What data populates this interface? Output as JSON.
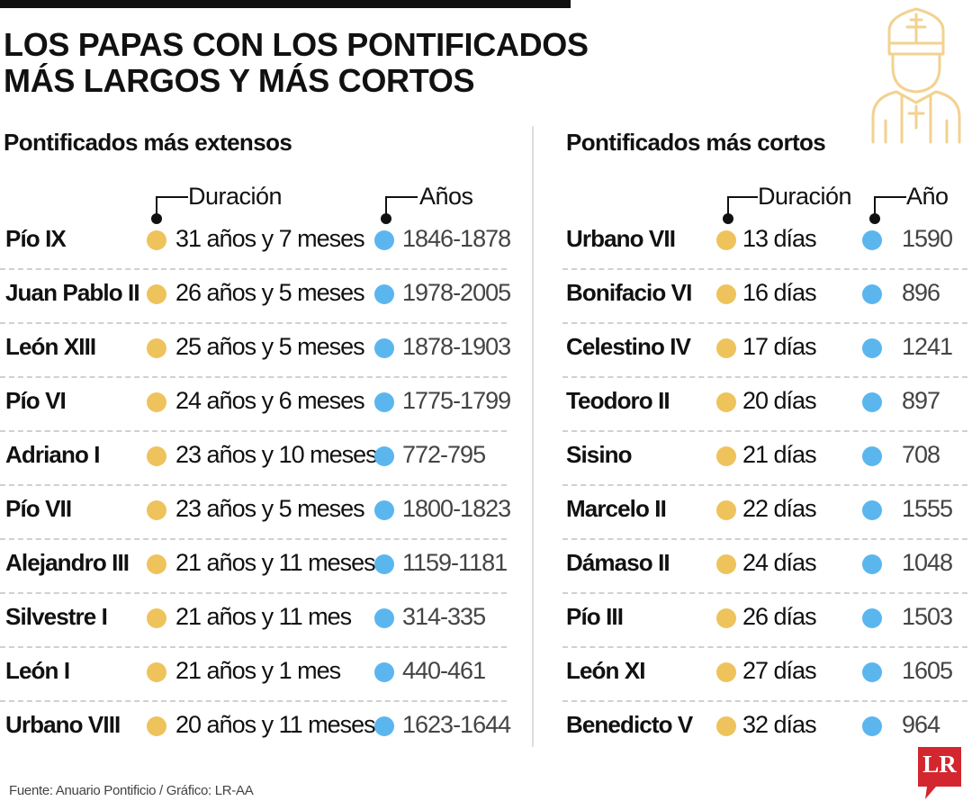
{
  "title": {
    "line1": "LOS PAPAS CON LOS PONTIFICADOS",
    "line2": "MÁS LARGOS Y MÁS CORTOS"
  },
  "colors": {
    "duration_dot": "#eec35c",
    "year_dot": "#5bb6ee",
    "icon_stroke": "#f2d290",
    "brand": "#d3262f"
  },
  "icons": {
    "pope": "pope-icon",
    "brand_logo": "lr-logo"
  },
  "longest": {
    "heading": "Pontificados más extensos",
    "duration_label": "Duración",
    "years_label": "Años",
    "rows": [
      {
        "name": "Pío IX",
        "duration": "31 años y 7 meses",
        "years": "1846-1878"
      },
      {
        "name": "Juan Pablo II",
        "duration": "26 años y 5 meses",
        "years": "1978-2005"
      },
      {
        "name": "León XIII",
        "duration": "25 años y 5 meses",
        "years": "1878-1903"
      },
      {
        "name": "Pío VI",
        "duration": "24 años y 6 meses",
        "years": "1775-1799"
      },
      {
        "name": "Adriano I",
        "duration": "23 años y 10 meses",
        "years": "772-795"
      },
      {
        "name": "Pío VII",
        "duration": "23 años y 5 meses",
        "years": "1800-1823"
      },
      {
        "name": "Alejandro III",
        "duration": "21 años y 11 meses",
        "years": "1159-1181"
      },
      {
        "name": "Silvestre I",
        "duration": "21 años y 11 mes",
        "years": "314-335"
      },
      {
        "name": "León I",
        "duration": "21 años y 1 mes",
        "years": "440-461"
      },
      {
        "name": "Urbano VIII",
        "duration": "20 años y 11 meses",
        "years": "1623-1644"
      }
    ]
  },
  "shortest": {
    "heading": "Pontificados más cortos",
    "duration_label": "Duración",
    "year_label": "Año",
    "rows": [
      {
        "name": "Urbano VII",
        "duration": "13 días",
        "year": "1590"
      },
      {
        "name": "Bonifacio VI",
        "duration": "16 días",
        "year": "896"
      },
      {
        "name": "Celestino IV",
        "duration": "17 días",
        "year": "1241"
      },
      {
        "name": "Teodoro II",
        "duration": "20 días",
        "year": "897"
      },
      {
        "name": "Sisino",
        "duration": "21 días",
        "year": "708"
      },
      {
        "name": "Marcelo II",
        "duration": "22 días",
        "year": "1555"
      },
      {
        "name": "Dámaso II",
        "duration": "24 días",
        "year": "1048"
      },
      {
        "name": "Pío III",
        "duration": "26 días",
        "year": "1503"
      },
      {
        "name": "León XI",
        "duration": "27 días",
        "year": "1605"
      },
      {
        "name": "Benedicto V",
        "duration": "32 días",
        "year": "964"
      }
    ]
  },
  "source": "Fuente: Anuario Pontificio / Gráfico: LR-AA",
  "logo_text": "LR"
}
